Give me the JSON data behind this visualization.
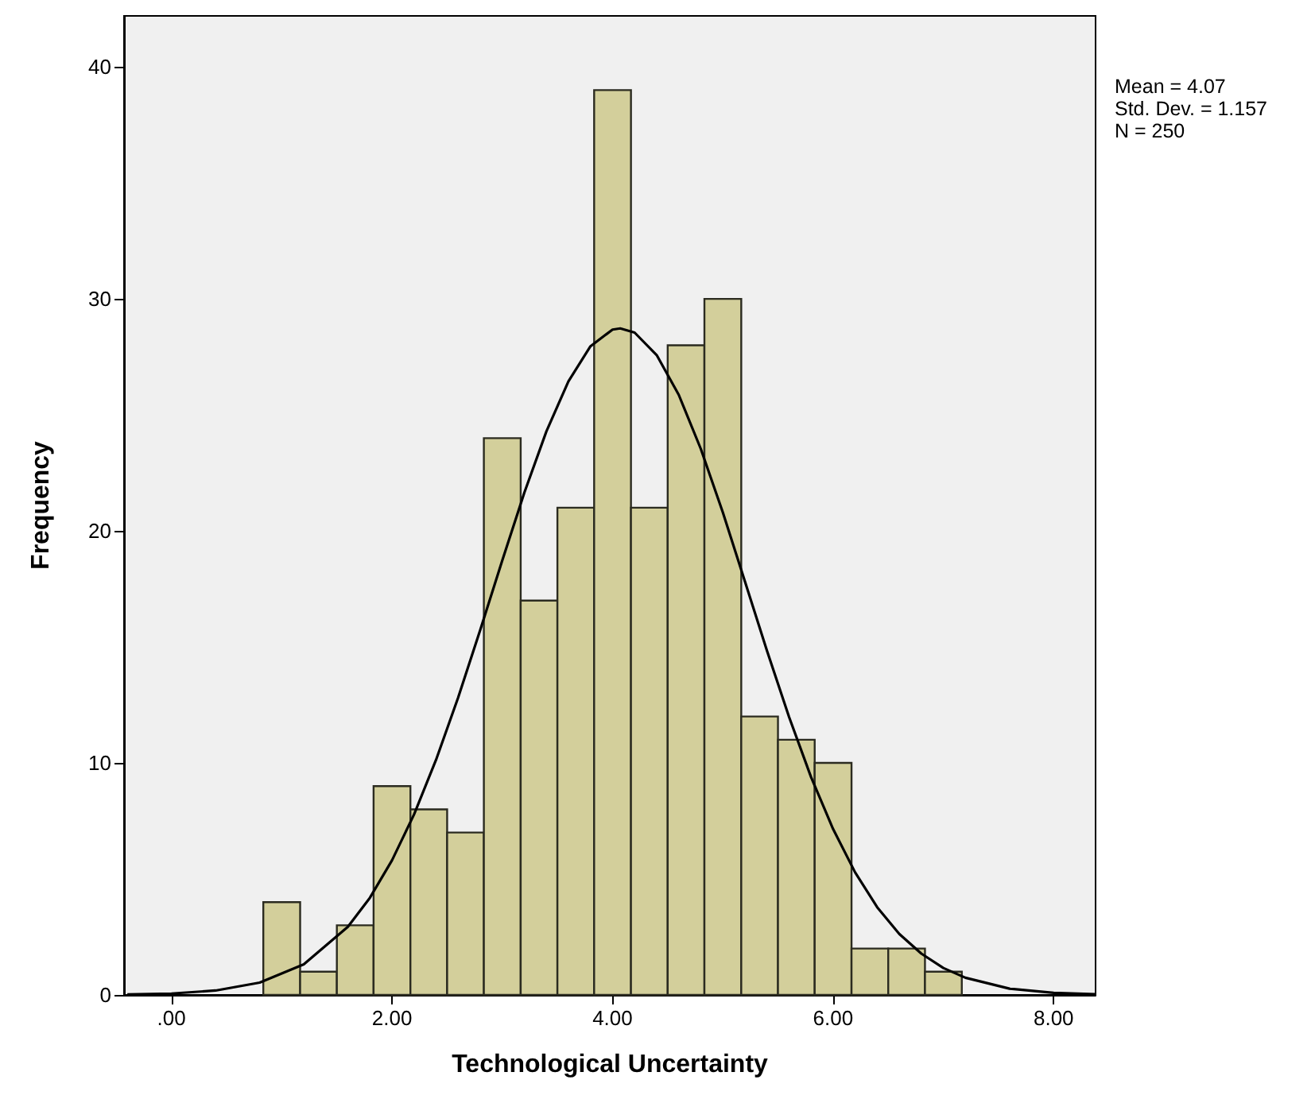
{
  "chart_data": {
    "type": "histogram",
    "xlabel": "Technological Uncertainty",
    "ylabel": "Frequency",
    "bins": [
      0.833,
      1.167,
      1.5,
      1.833,
      2.167,
      2.5,
      2.833,
      3.167,
      3.5,
      3.833,
      4.167,
      4.5,
      4.833,
      5.167,
      5.5,
      5.833,
      6.167,
      6.5,
      6.833,
      7.167
    ],
    "series": [
      {
        "color": "#d3cf9b",
        "values": [
          4,
          1,
          3,
          9,
          8,
          7,
          24,
          17,
          21,
          39,
          21,
          28,
          30,
          12,
          11,
          10,
          2,
          2,
          1
        ]
      },
      {
        "type": "line",
        "color": "#000000",
        "x": [
          -0.4,
          0,
          0.4,
          0.8,
          1.2,
          1.6,
          1.8,
          2,
          2.2,
          2.4,
          2.6,
          2.8,
          3,
          3.2,
          3.4,
          3.6,
          3.8,
          4,
          4.07,
          4.2,
          4.4,
          4.6,
          4.8,
          5,
          5.2,
          5.4,
          5.6,
          5.8,
          6,
          6.2,
          6.4,
          6.6,
          6.8,
          7,
          7.2,
          7.6,
          8,
          8.38
        ],
        "values": [
          0.02,
          0.06,
          0.19,
          0.53,
          1.32,
          2.94,
          4.19,
          5.8,
          7.78,
          10.14,
          12.82,
          15.73,
          18.73,
          21.65,
          24.29,
          26.45,
          27.96,
          28.68,
          28.73,
          28.55,
          27.58,
          25.87,
          23.54,
          20.8,
          17.83,
          14.84,
          11.99,
          9.39,
          7.15,
          5.28,
          3.78,
          2.63,
          1.78,
          1.16,
          0.74,
          0.27,
          0.09,
          0.03
        ]
      }
    ],
    "marker": "none",
    "line_style": "solid",
    "xlim": [
      -0.43,
      8.38
    ],
    "xticks": [
      {
        "value": 0,
        "label": ".00"
      },
      {
        "value": 2,
        "label": "2.00"
      },
      {
        "value": 4,
        "label": "4.00"
      },
      {
        "value": 6,
        "label": "6.00"
      },
      {
        "value": 8,
        "label": "8.00"
      }
    ],
    "ylim": [
      0,
      42.2
    ],
    "yticks": [
      0,
      10,
      20,
      30,
      40
    ],
    "grid": false,
    "annotations": [
      "Mean = 4.07",
      "Std. Dev. = 1.157",
      "N = 250"
    ]
  }
}
